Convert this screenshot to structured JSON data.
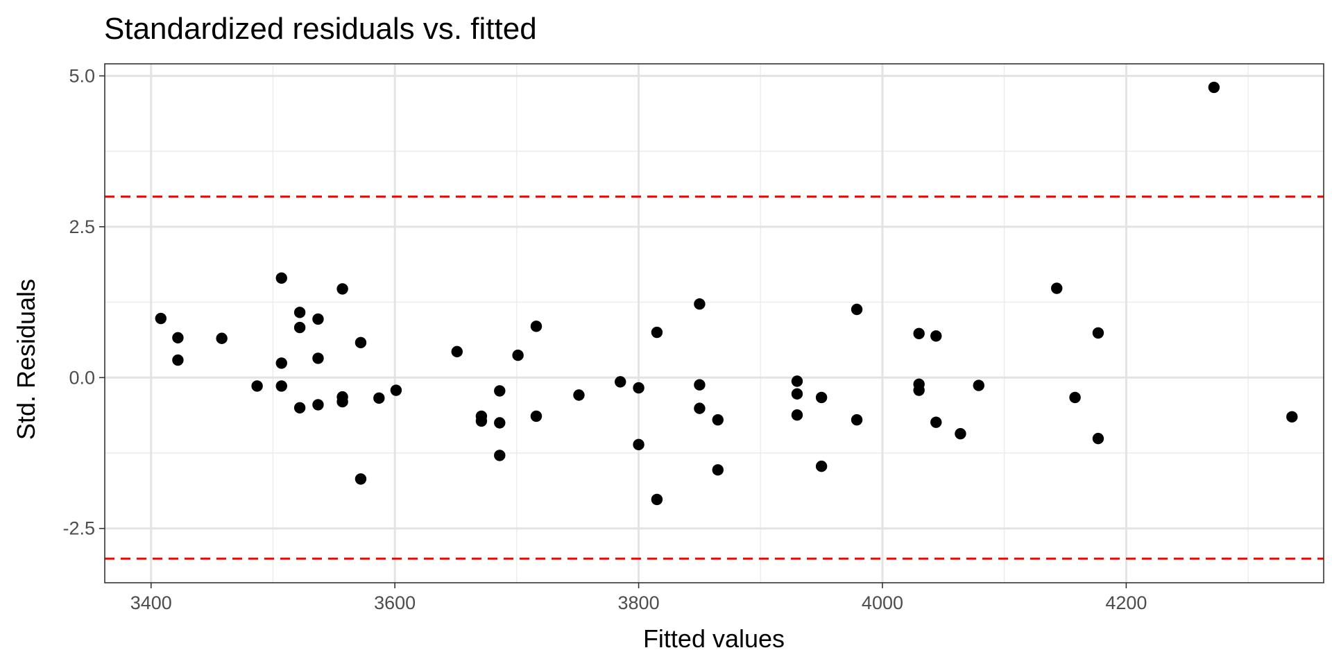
{
  "chart_data": {
    "type": "scatter",
    "title": "Standardized residuals vs. fitted",
    "xlabel": "Fitted values",
    "ylabel": "Std. Residuals",
    "xlim": [
      3362,
      4362
    ],
    "ylim": [
      -3.4,
      5.2
    ],
    "x_ticks": [
      3400,
      3600,
      3800,
      4000,
      4200
    ],
    "y_ticks": [
      -2.5,
      0.0,
      2.5,
      5.0
    ],
    "y_tick_labels": [
      "-2.5",
      "0.0",
      "2.5",
      "5.0"
    ],
    "x_minor_grid": [
      3500,
      3700,
      3900,
      4100,
      4300
    ],
    "y_minor_grid": [
      -1.25,
      1.25,
      3.75
    ],
    "grid": true,
    "reference_lines": [
      {
        "y": 3.0,
        "style": "dashed",
        "color": "#ff0000"
      },
      {
        "y": -3.0,
        "style": "dashed",
        "color": "#ff0000"
      }
    ],
    "point_color": "#000000",
    "points": [
      {
        "x": 3408,
        "y": 0.98
      },
      {
        "x": 3422,
        "y": 0.66
      },
      {
        "x": 3422,
        "y": 0.29
      },
      {
        "x": 3458,
        "y": 0.65
      },
      {
        "x": 3487,
        "y": -0.14
      },
      {
        "x": 3507,
        "y": 1.65
      },
      {
        "x": 3507,
        "y": 0.24
      },
      {
        "x": 3507,
        "y": -0.14
      },
      {
        "x": 3522,
        "y": 1.08
      },
      {
        "x": 3522,
        "y": 0.83
      },
      {
        "x": 3522,
        "y": -0.5
      },
      {
        "x": 3537,
        "y": 0.97
      },
      {
        "x": 3537,
        "y": 0.32
      },
      {
        "x": 3537,
        "y": -0.45
      },
      {
        "x": 3557,
        "y": 1.47
      },
      {
        "x": 3557,
        "y": -0.32
      },
      {
        "x": 3557,
        "y": -0.4
      },
      {
        "x": 3572,
        "y": 0.58
      },
      {
        "x": 3572,
        "y": -1.68
      },
      {
        "x": 3587,
        "y": -0.34
      },
      {
        "x": 3601,
        "y": -0.21
      },
      {
        "x": 3651,
        "y": 0.43
      },
      {
        "x": 3671,
        "y": -0.64
      },
      {
        "x": 3671,
        "y": -0.72
      },
      {
        "x": 3686,
        "y": -0.22
      },
      {
        "x": 3686,
        "y": -0.75
      },
      {
        "x": 3686,
        "y": -1.29
      },
      {
        "x": 3701,
        "y": 0.37
      },
      {
        "x": 3716,
        "y": 0.85
      },
      {
        "x": 3716,
        "y": -0.64
      },
      {
        "x": 3751,
        "y": -0.29
      },
      {
        "x": 3785,
        "y": -0.07
      },
      {
        "x": 3800,
        "y": -0.17
      },
      {
        "x": 3800,
        "y": -1.11
      },
      {
        "x": 3815,
        "y": 0.75
      },
      {
        "x": 3815,
        "y": -2.02
      },
      {
        "x": 3850,
        "y": 1.22
      },
      {
        "x": 3850,
        "y": -0.12
      },
      {
        "x": 3850,
        "y": -0.51
      },
      {
        "x": 3865,
        "y": -0.7
      },
      {
        "x": 3865,
        "y": -1.53
      },
      {
        "x": 3930,
        "y": -0.06
      },
      {
        "x": 3930,
        "y": -0.27
      },
      {
        "x": 3930,
        "y": -0.62
      },
      {
        "x": 3950,
        "y": -0.33
      },
      {
        "x": 3950,
        "y": -1.47
      },
      {
        "x": 3979,
        "y": 1.13
      },
      {
        "x": 3979,
        "y": -0.7
      },
      {
        "x": 4030,
        "y": 0.73
      },
      {
        "x": 4030,
        "y": -0.11
      },
      {
        "x": 4030,
        "y": -0.21
      },
      {
        "x": 4044,
        "y": 0.69
      },
      {
        "x": 4044,
        "y": -0.74
      },
      {
        "x": 4064,
        "y": -0.93
      },
      {
        "x": 4079,
        "y": -0.13
      },
      {
        "x": 4143,
        "y": 1.48
      },
      {
        "x": 4158,
        "y": -0.33
      },
      {
        "x": 4177,
        "y": 0.74
      },
      {
        "x": 4177,
        "y": -1.01
      },
      {
        "x": 4272,
        "y": 4.81
      },
      {
        "x": 4336,
        "y": -0.65
      }
    ]
  }
}
